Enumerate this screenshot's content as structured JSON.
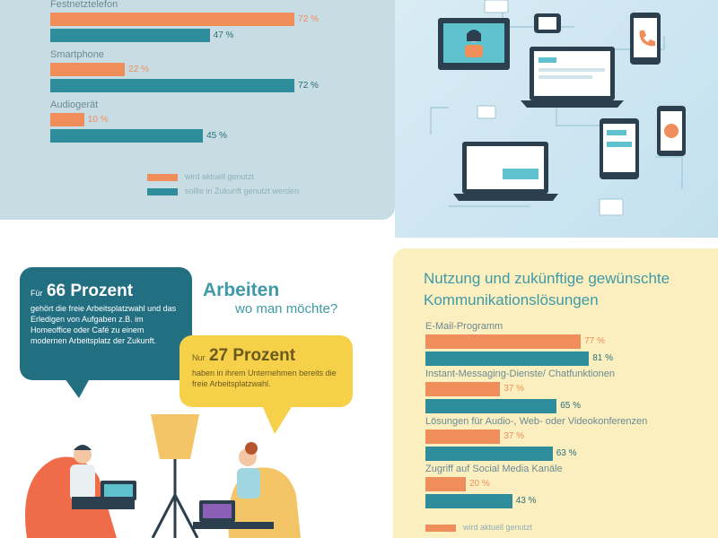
{
  "top_chart": {
    "categories": [
      "Festnetztelefon",
      "Smartphone",
      "Audiogerät"
    ],
    "series": [
      {
        "values": [
          72,
          22,
          10
        ],
        "labels": [
          "72 %",
          "22 %",
          "10 %"
        ]
      },
      {
        "values": [
          47,
          72,
          45
        ],
        "labels": [
          "47 %",
          "72 %",
          "45 %"
        ]
      }
    ],
    "legend": [
      "wird aktuell genutzt",
      "sollte in Zukunft genutzt werden"
    ]
  },
  "arbeiten": {
    "title": "Arbeiten",
    "subtitle": "wo man möchte?"
  },
  "bubble_66": {
    "prefix": "Für",
    "highlight": "66 Prozent",
    "text": "gehört die freie Arbeitsplatzwahl und das Erledigen von Aufgaben z.B. im Homeoffice oder Café zu einem modernen Arbeitsplatz der Zukunft."
  },
  "bubble_27": {
    "prefix": "Nur",
    "highlight": "27 Prozent",
    "text": "haben in ihrem Unternehmen bereits die freie Arbeitsplatzwahl."
  },
  "communication_chart": {
    "title": "Nutzung und zukünftige gewünschte Kommunikationslösungen",
    "categories": [
      "E-Mail-Programm",
      "Instant-Messaging-Dienste/ Chatfunktionen",
      "Lösungen für Audio-, Web- oder Videokonferenzen",
      "Zugriff auf Social Media Kanäle"
    ],
    "series": [
      {
        "values": [
          77,
          37,
          37,
          20
        ],
        "labels": [
          "77 %",
          "37 %",
          "37 %",
          "20 %"
        ]
      },
      {
        "values": [
          81,
          65,
          63,
          43
        ],
        "labels": [
          "81 %",
          "65 %",
          "63 %",
          "43 %"
        ]
      }
    ],
    "legend": [
      "wird aktuell genutzt"
    ]
  },
  "chart_data": [
    {
      "type": "bar",
      "categories": [
        "Festnetztelefon",
        "Smartphone",
        "Audiogerät"
      ],
      "series": [
        {
          "name": "wird aktuell genutzt",
          "values": [
            72,
            22,
            10
          ]
        },
        {
          "name": "sollte in Zukunft genutzt werden",
          "values": [
            47,
            72,
            45
          ]
        }
      ],
      "orientation": "horizontal",
      "xlim": [
        0,
        100
      ]
    },
    {
      "type": "bar",
      "title": "Nutzung und zukünftige gewünschte Kommunikationslösungen",
      "categories": [
        "E-Mail-Programm",
        "Instant-Messaging-Dienste/ Chatfunktionen",
        "Lösungen für Audio-, Web- oder Videokonferenzen",
        "Zugriff auf Social Media Kanäle"
      ],
      "series": [
        {
          "name": "wird aktuell genutzt",
          "values": [
            77,
            37,
            37,
            20
          ]
        },
        {
          "values": [
            81,
            65,
            63,
            43
          ]
        }
      ],
      "orientation": "horizontal",
      "xlim": [
        0,
        100
      ]
    }
  ],
  "colors": {
    "orange": "#ef8e5a",
    "teal": "#2f8c9b",
    "panel_blue": "#c8dde3",
    "panel_yellow": "#fbefbf"
  },
  "icons": [
    "video-call-monitor-icon",
    "smartwatch-icon",
    "smartphone-call-icon",
    "laptop-chat-icon",
    "tablet-icon",
    "phone-app-icon",
    "floor-lamp-icon",
    "beanbag-icon"
  ]
}
